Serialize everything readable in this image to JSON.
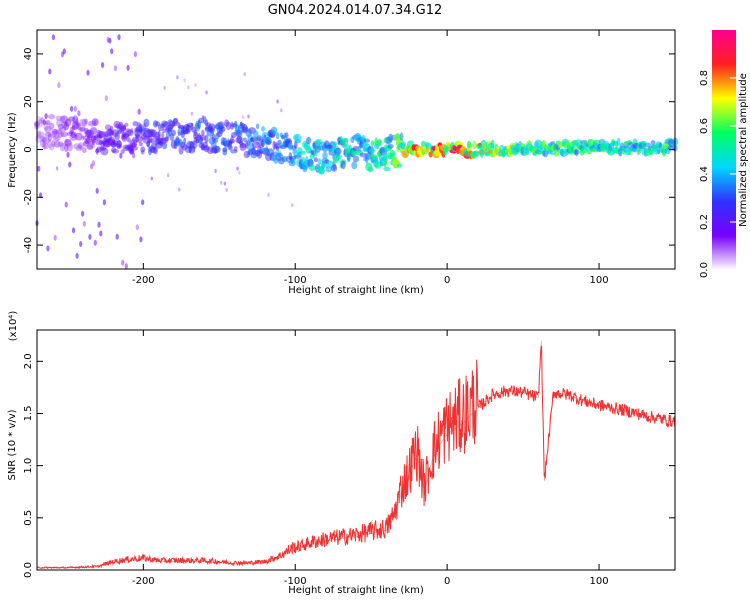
{
  "title": "GN04.2024.014.07.34.G12",
  "chart_data": [
    {
      "type": "heatmap",
      "xlabel": "Height of straight line (km)",
      "ylabel": "Frequency (Hz)",
      "xlim": [
        -270,
        150
      ],
      "ylim": [
        -50,
        50
      ],
      "x_ticks": [
        -200,
        -100,
        0,
        100
      ],
      "y_ticks": [
        -40,
        -20,
        0,
        20,
        40
      ],
      "colorbar": {
        "label": "Normalized spectral amplitude",
        "range": [
          0,
          1
        ],
        "ticks": [
          "0.0",
          "0.2",
          "0.4",
          "0.6",
          "0.8"
        ],
        "colors": [
          "#ffffff",
          "#7a00ff",
          "#3030ff",
          "#00d8ff",
          "#00ff60",
          "#ffff00",
          "#ff2020",
          "#ff0090"
        ]
      },
      "ridge": {
        "x": [
          -270,
          -240,
          -220,
          -200,
          -180,
          -160,
          -140,
          -120,
          -100,
          -80,
          -60,
          -45,
          -35,
          -20,
          0,
          50,
          100,
          150
        ],
        "freq": [
          8,
          6,
          5,
          5,
          6,
          6,
          5,
          3,
          -1,
          -3,
          -1,
          -3,
          -1,
          0,
          0,
          0,
          1,
          1
        ],
        "amplitude": [
          0.1,
          0.15,
          0.2,
          0.25,
          0.3,
          0.3,
          0.3,
          0.35,
          0.4,
          0.45,
          0.45,
          0.5,
          0.55,
          0.75,
          0.85,
          0.55,
          0.5,
          0.5
        ]
      }
    },
    {
      "type": "line",
      "xlabel": "Height of straight line (km)",
      "ylabel": "SNR (10 * v/v)",
      "scale_label": "(x10⁴)",
      "xlim": [
        -270,
        150
      ],
      "ylim": [
        0,
        2.3
      ],
      "x_ticks": [
        -200,
        -100,
        0,
        100
      ],
      "y_ticks": [
        "0.0",
        "0.5",
        "1.0",
        "1.5",
        "2.0"
      ],
      "series": [
        {
          "color": "#ee3333",
          "x": [
            -270,
            -250,
            -230,
            -220,
            -210,
            -200,
            -190,
            -180,
            -170,
            -160,
            -150,
            -140,
            -130,
            -120,
            -110,
            -100,
            -90,
            -80,
            -70,
            -60,
            -50,
            -40,
            -35,
            -30,
            -25,
            -20,
            -15,
            -10,
            -5,
            0,
            10,
            20,
            30,
            40,
            50,
            60,
            62,
            64,
            70,
            80,
            90,
            100,
            110,
            120,
            130,
            140,
            150
          ],
          "values": [
            0.02,
            0.02,
            0.03,
            0.07,
            0.09,
            0.1,
            0.08,
            0.08,
            0.08,
            0.08,
            0.07,
            0.06,
            0.06,
            0.07,
            0.12,
            0.2,
            0.25,
            0.28,
            0.3,
            0.32,
            0.35,
            0.38,
            0.5,
            0.75,
            0.9,
            1.1,
            0.75,
            1.05,
            1.2,
            1.3,
            1.4,
            1.55,
            1.68,
            1.72,
            1.7,
            1.65,
            2.2,
            0.85,
            1.7,
            1.68,
            1.62,
            1.58,
            1.55,
            1.52,
            1.48,
            1.45,
            1.42
          ]
        }
      ]
    }
  ]
}
